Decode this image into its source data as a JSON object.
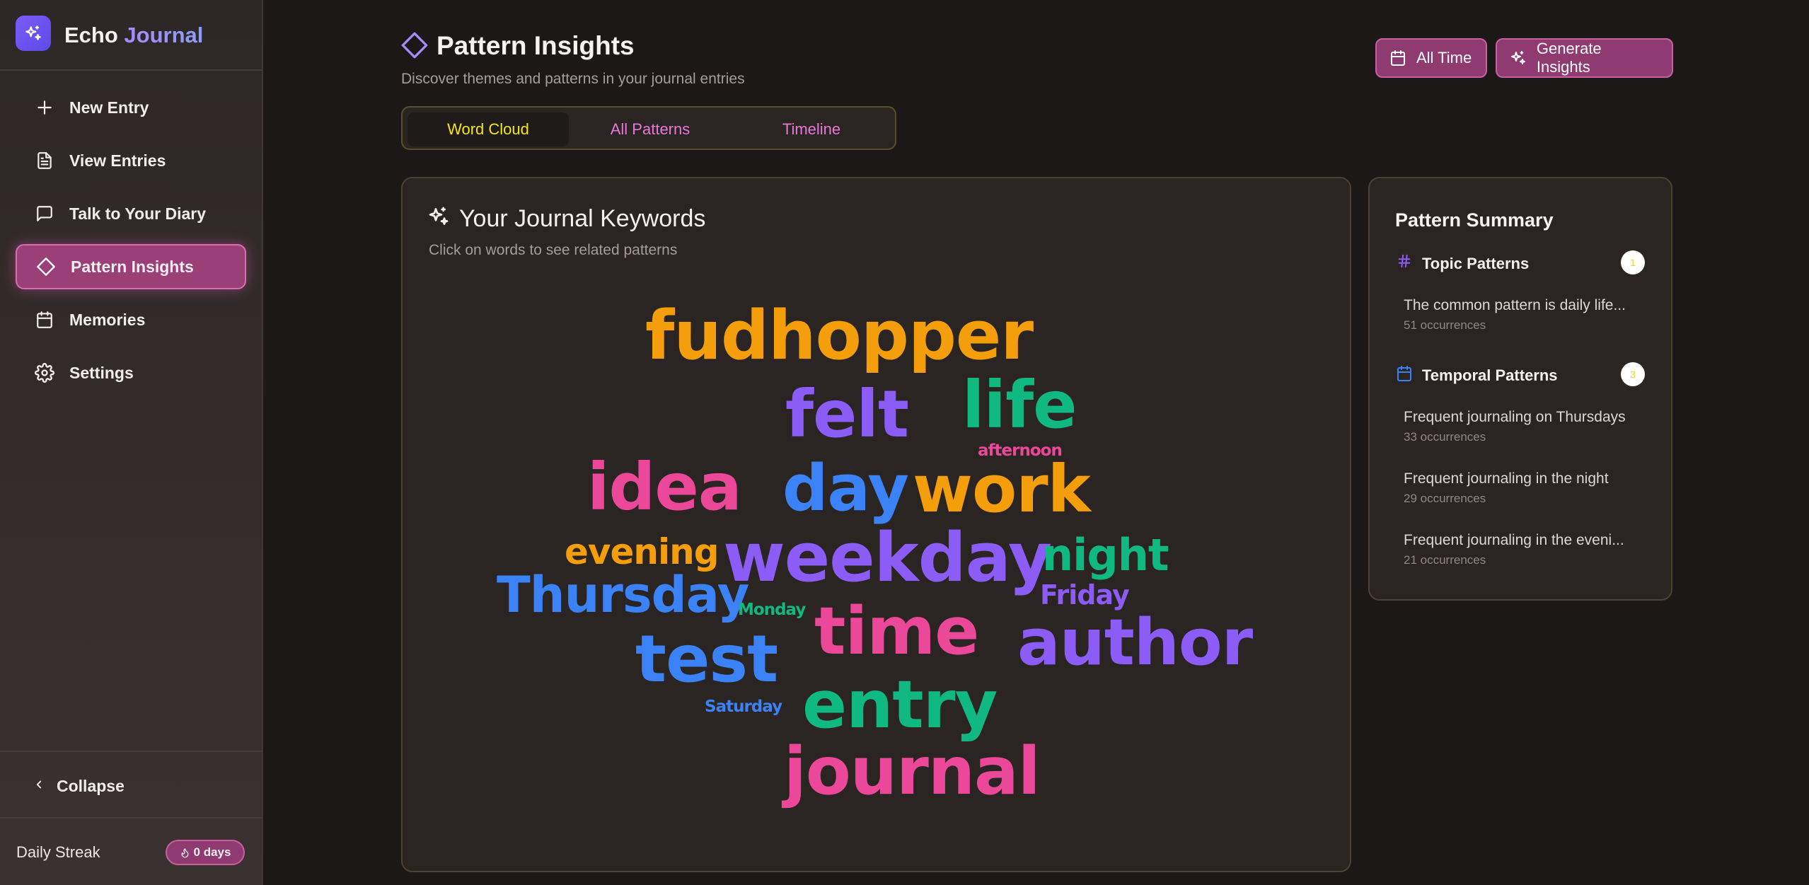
{
  "app": {
    "name_primary": "Echo",
    "name_accent": "Journal"
  },
  "sidebar": {
    "items": [
      {
        "label": "New Entry",
        "icon": "plus-icon"
      },
      {
        "label": "View Entries",
        "icon": "file-text-icon"
      },
      {
        "label": "Talk to Your Diary",
        "icon": "message-square-icon"
      },
      {
        "label": "Pattern Insights",
        "icon": "diamond-icon",
        "active": true
      },
      {
        "label": "Memories",
        "icon": "calendar-icon"
      },
      {
        "label": "Settings",
        "icon": "gear-icon"
      }
    ],
    "collapse_label": "Collapse",
    "streak_label": "Daily Streak",
    "streak_value": "0 days"
  },
  "header": {
    "title": "Pattern Insights",
    "subtitle": "Discover themes and patterns in your journal entries",
    "all_time_label": "All Time",
    "generate_label": "Generate Insights"
  },
  "tabs": [
    {
      "label": "Word Cloud",
      "active": true
    },
    {
      "label": "All Patterns",
      "active": false
    },
    {
      "label": "Timeline",
      "active": false
    }
  ],
  "keywords_card": {
    "title": "Your Journal Keywords",
    "subtitle": "Click on words to see related patterns",
    "words": [
      {
        "text": "fudhopper",
        "color": "#f59e0b"
      },
      {
        "text": "felt",
        "color": "#8b5cf6"
      },
      {
        "text": "life",
        "color": "#10b981"
      },
      {
        "text": "afternoon",
        "color": "#ec4899"
      },
      {
        "text": "idea",
        "color": "#ec4899"
      },
      {
        "text": "day",
        "color": "#3b82f6"
      },
      {
        "text": "work",
        "color": "#f59e0b"
      },
      {
        "text": "evening",
        "color": "#f59e0b"
      },
      {
        "text": "weekday",
        "color": "#8b5cf6"
      },
      {
        "text": "night",
        "color": "#10b981"
      },
      {
        "text": "Thursday",
        "color": "#3b82f6"
      },
      {
        "text": "Friday",
        "color": "#8b5cf6"
      },
      {
        "text": "Monday",
        "color": "#10b981"
      },
      {
        "text": "time",
        "color": "#ec4899"
      },
      {
        "text": "author",
        "color": "#8b5cf6"
      },
      {
        "text": "test",
        "color": "#3b82f6"
      },
      {
        "text": "Saturday",
        "color": "#3b82f6"
      },
      {
        "text": "entry",
        "color": "#10b981"
      },
      {
        "text": "journal",
        "color": "#ec4899"
      }
    ]
  },
  "summary": {
    "title": "Pattern Summary",
    "sections": [
      {
        "title": "Topic Patterns",
        "icon": "hash-icon",
        "count": "1",
        "items": [
          {
            "title": "The common pattern is daily life...",
            "occurrences": "51 occurrences"
          }
        ]
      },
      {
        "title": "Temporal Patterns",
        "icon": "calendar-icon",
        "count": "3",
        "items": [
          {
            "title": "Frequent journaling on Thursdays",
            "occurrences": "33 occurrences"
          },
          {
            "title": "Frequent journaling in the night",
            "occurrences": "29 occurrences"
          },
          {
            "title": "Frequent journaling in the eveni...",
            "occurrences": "21 occurrences"
          }
        ]
      }
    ]
  },
  "colors": {
    "accent_pink": "#8f3a70",
    "tab_active_text": "#f5e51a",
    "tab_inactive_text": "#e878d8"
  }
}
